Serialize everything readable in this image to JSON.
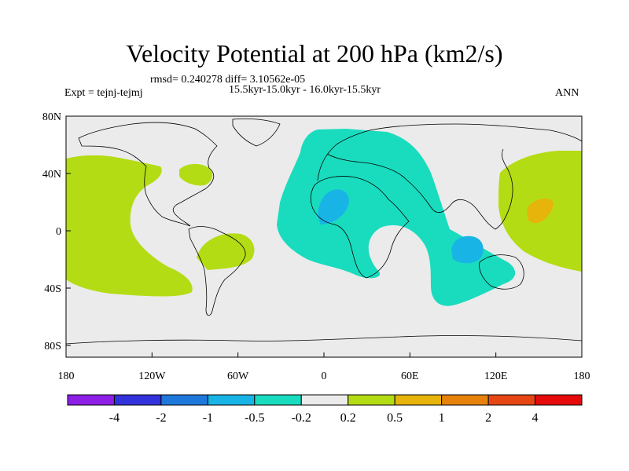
{
  "title": "Velocity Potential at 200 hPa (km2/s)",
  "stats": "rmsd= 0.240278 diff= 3.10562e-05",
  "periods": "15.5kyr-15.0kyr - 16.0kyr-15.5kyr",
  "expt": "Expt = tejnj-tejmj",
  "season": "ANN",
  "map": {
    "lon_ticks": [
      "180",
      "120W",
      "60W",
      "0",
      "60E",
      "120E",
      "180"
    ],
    "lat_ticks": [
      "80N",
      "40N",
      "0",
      "40S",
      "80S"
    ],
    "lat_values": [
      80,
      40,
      0,
      -40,
      -80
    ],
    "lon_values": [
      -180,
      -120,
      -60,
      0,
      60,
      120,
      180
    ],
    "ocean_color": "#ebebeb"
  },
  "colorbar": {
    "labels": [
      "-4",
      "-2",
      "-1",
      "-0.5",
      "-0.2",
      "0.2",
      "0.5",
      "1",
      "2",
      "4"
    ],
    "colors": [
      "#8c1ee6",
      "#3232dc",
      "#1e78dc",
      "#19b4e6",
      "#19dcbe",
      "#ebebeb",
      "#b4dc14",
      "#e6b40a",
      "#e6820a",
      "#e64614",
      "#e60a0a"
    ]
  }
}
